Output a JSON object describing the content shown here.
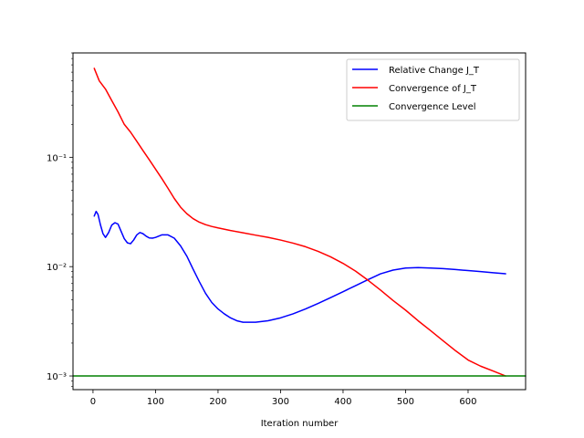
{
  "chart_data": {
    "type": "line",
    "title": "",
    "xlabel": "Iteration number",
    "ylabel": "",
    "xlim": [
      -32,
      692
    ],
    "ylim": [
      0.00075,
      0.9
    ],
    "yscale": "log",
    "xticks": [
      0,
      100,
      200,
      300,
      400,
      500,
      600
    ],
    "xtick_labels": [
      "0",
      "100",
      "200",
      "300",
      "400",
      "500",
      "600"
    ],
    "yticks": [
      0.001,
      0.01,
      0.1
    ],
    "ytick_labels": [
      "10⁻³",
      "10⁻²",
      "10⁻¹"
    ],
    "grid": false,
    "legend_position": "top-right",
    "series": [
      {
        "name": "Relative Change J_T",
        "color": "#0000ff",
        "x": [
          2,
          5,
          8,
          12,
          16,
          20,
          25,
          30,
          35,
          40,
          45,
          50,
          55,
          60,
          65,
          70,
          75,
          80,
          85,
          90,
          95,
          100,
          110,
          120,
          130,
          140,
          150,
          160,
          170,
          180,
          190,
          200,
          210,
          220,
          230,
          240,
          250,
          260,
          280,
          300,
          320,
          340,
          360,
          380,
          400,
          420,
          440,
          460,
          480,
          500,
          520,
          540,
          560,
          580,
          600,
          620,
          640,
          660
        ],
        "y": [
          0.029,
          0.032,
          0.03,
          0.024,
          0.02,
          0.0185,
          0.0205,
          0.024,
          0.0252,
          0.0245,
          0.021,
          0.018,
          0.0165,
          0.0162,
          0.0175,
          0.0195,
          0.0205,
          0.02,
          0.019,
          0.0183,
          0.0182,
          0.0185,
          0.0195,
          0.0195,
          0.0182,
          0.0155,
          0.0125,
          0.0095,
          0.0073,
          0.0057,
          0.0047,
          0.0041,
          0.0037,
          0.0034,
          0.0032,
          0.0031,
          0.0031,
          0.0031,
          0.0032,
          0.0034,
          0.0037,
          0.0041,
          0.0046,
          0.0052,
          0.0059,
          0.0067,
          0.0076,
          0.0086,
          0.0093,
          0.0097,
          0.0098,
          0.0097,
          0.0096,
          0.0094,
          0.0092,
          0.009,
          0.0088,
          0.0086
        ]
      },
      {
        "name": "Convergence of J_T",
        "color": "#ff0000",
        "x": [
          2,
          10,
          20,
          30,
          40,
          50,
          60,
          70,
          80,
          90,
          100,
          110,
          120,
          130,
          140,
          150,
          160,
          170,
          180,
          190,
          200,
          220,
          240,
          260,
          280,
          300,
          320,
          340,
          360,
          380,
          400,
          420,
          440,
          460,
          480,
          500,
          520,
          540,
          560,
          580,
          600,
          620,
          640,
          660
        ],
        "y": [
          0.65,
          0.5,
          0.42,
          0.33,
          0.26,
          0.2,
          0.17,
          0.14,
          0.115,
          0.095,
          0.078,
          0.064,
          0.052,
          0.042,
          0.035,
          0.0305,
          0.0275,
          0.0255,
          0.0242,
          0.0233,
          0.0226,
          0.0214,
          0.0204,
          0.0194,
          0.0185,
          0.0175,
          0.0164,
          0.0152,
          0.0138,
          0.0123,
          0.0107,
          0.0091,
          0.0075,
          0.0061,
          0.0049,
          0.004,
          0.0032,
          0.0026,
          0.0021,
          0.0017,
          0.0014,
          0.00123,
          0.00111,
          0.001
        ]
      },
      {
        "name": "Convergence Level",
        "color": "#008000",
        "x": [
          -32,
          692
        ],
        "y": [
          0.001,
          0.001
        ]
      }
    ]
  }
}
